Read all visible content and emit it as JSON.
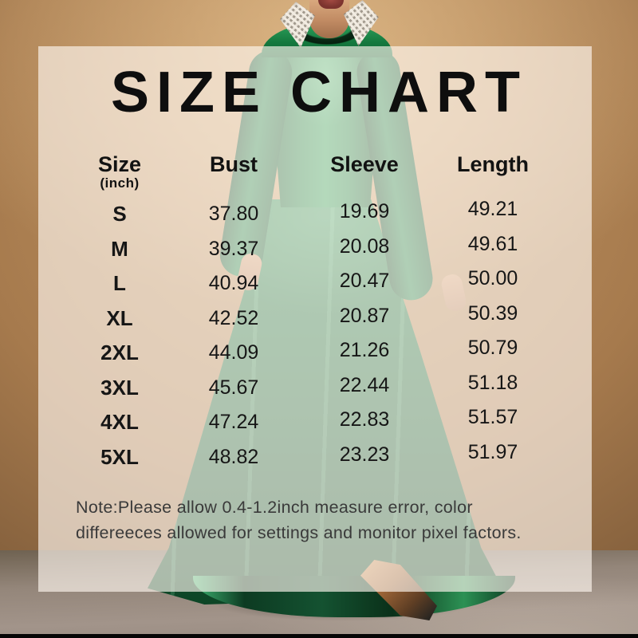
{
  "title": "SIZE CHART",
  "table": {
    "headers": {
      "size": "Size",
      "size_unit": "(inch)",
      "bust": "Bust",
      "sleeve": "Sleeve",
      "length": "Length"
    },
    "rows": [
      {
        "size": "S",
        "bust": "37.80",
        "sleeve": "19.69",
        "length": "49.21"
      },
      {
        "size": "M",
        "bust": "39.37",
        "sleeve": "20.08",
        "length": "49.61"
      },
      {
        "size": "L",
        "bust": "40.94",
        "sleeve": "20.47",
        "length": "50.00"
      },
      {
        "size": "XL",
        "bust": "42.52",
        "sleeve": "20.87",
        "length": "50.39"
      },
      {
        "size": "2XL",
        "bust": "44.09",
        "sleeve": "21.26",
        "length": "50.79"
      },
      {
        "size": "3XL",
        "bust": "45.67",
        "sleeve": "22.44",
        "length": "51.18"
      },
      {
        "size": "4XL",
        "bust": "47.24",
        "sleeve": "22.83",
        "length": "51.57"
      },
      {
        "size": "5XL",
        "bust": "48.82",
        "sleeve": "23.23",
        "length": "51.97"
      }
    ]
  },
  "note": {
    "line1": "Note:Please allow 0.4-1.2inch measure error, color",
    "line2": "differeeces allowed for settings and monitor pixel factors."
  },
  "chart_data": {
    "type": "table",
    "title": "SIZE CHART",
    "unit": "inch",
    "columns": [
      "Size (inch)",
      "Bust",
      "Sleeve",
      "Length"
    ],
    "rows": [
      [
        "S",
        37.8,
        19.69,
        49.21
      ],
      [
        "M",
        39.37,
        20.08,
        49.61
      ],
      [
        "L",
        40.94,
        20.47,
        50.0
      ],
      [
        "XL",
        42.52,
        20.87,
        50.39
      ],
      [
        "2XL",
        44.09,
        21.26,
        50.79
      ],
      [
        "3XL",
        45.67,
        22.44,
        51.18
      ],
      [
        "4XL",
        47.24,
        22.83,
        51.57
      ],
      [
        "5XL",
        48.82,
        23.23,
        51.97
      ]
    ]
  },
  "colors": {
    "text": "#0e0e0e",
    "note_text": "#3a3a3a",
    "overlay_panel": "rgba(253,246,239,0.66)",
    "wall_brown": "#a67a4d",
    "dress_green": "#1d8a4b",
    "floor_taupe": "#a2948a"
  }
}
